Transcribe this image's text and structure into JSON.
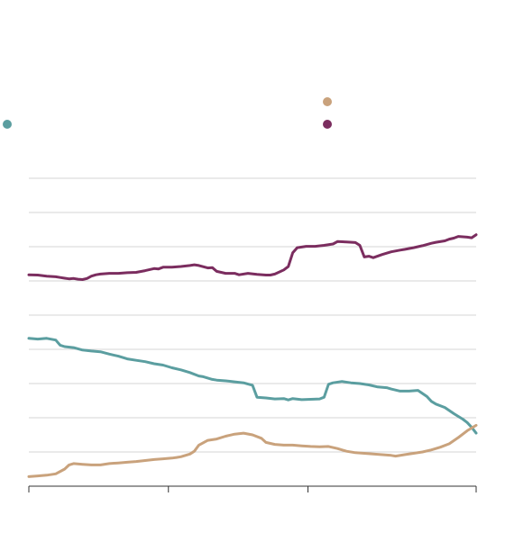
{
  "chart_data": {
    "type": "line",
    "title": "",
    "xlabel": "",
    "ylabel": "",
    "grid": true,
    "ylim": [
      0,
      9
    ],
    "xlim": [
      0,
      100
    ],
    "x_ticks": [
      0,
      31.2,
      62.4,
      100
    ],
    "legend_placement": "top",
    "series": [
      {
        "color": "#7b2d5f",
        "points": [
          [
            0,
            6.18
          ],
          [
            2,
            6.17
          ],
          [
            4,
            6.14
          ],
          [
            6,
            6.12
          ],
          [
            7,
            6.1
          ],
          [
            8,
            6.08
          ],
          [
            9,
            6.06
          ],
          [
            10,
            6.07
          ],
          [
            11,
            6.05
          ],
          [
            12,
            6.04
          ],
          [
            13,
            6.07
          ],
          [
            14,
            6.14
          ],
          [
            15,
            6.18
          ],
          [
            16,
            6.2
          ],
          [
            18,
            6.22
          ],
          [
            20,
            6.22
          ],
          [
            22,
            6.24
          ],
          [
            24,
            6.25
          ],
          [
            26,
            6.3
          ],
          [
            28,
            6.36
          ],
          [
            29,
            6.35
          ],
          [
            30,
            6.4
          ],
          [
            32,
            6.4
          ],
          [
            34,
            6.42
          ],
          [
            36,
            6.45
          ],
          [
            37,
            6.47
          ],
          [
            38,
            6.45
          ],
          [
            40,
            6.38
          ],
          [
            41,
            6.39
          ],
          [
            42,
            6.28
          ],
          [
            44,
            6.22
          ],
          [
            46,
            6.22
          ],
          [
            47,
            6.18
          ],
          [
            49,
            6.22
          ],
          [
            51,
            6.19
          ],
          [
            53,
            6.17
          ],
          [
            54,
            6.17
          ],
          [
            55,
            6.2
          ],
          [
            57,
            6.32
          ],
          [
            58,
            6.42
          ],
          [
            59,
            6.82
          ],
          [
            60,
            6.97
          ],
          [
            62,
            7.01
          ],
          [
            64,
            7.01
          ],
          [
            66,
            7.04
          ],
          [
            68,
            7.08
          ],
          [
            69,
            7.15
          ],
          [
            71,
            7.14
          ],
          [
            73,
            7.12
          ],
          [
            74,
            7.04
          ],
          [
            75,
            6.7
          ],
          [
            76,
            6.72
          ],
          [
            77,
            6.68
          ],
          [
            79,
            6.77
          ],
          [
            81,
            6.85
          ],
          [
            83,
            6.9
          ],
          [
            84,
            6.92
          ],
          [
            86,
            6.97
          ],
          [
            88,
            7.03
          ],
          [
            90,
            7.1
          ],
          [
            91,
            7.13
          ],
          [
            93,
            7.17
          ],
          [
            94,
            7.22
          ],
          [
            95,
            7.25
          ],
          [
            96,
            7.3
          ],
          [
            98,
            7.28
          ],
          [
            99,
            7.26
          ],
          [
            100,
            7.35
          ]
        ]
      },
      {
        "color": "#5b9ea0",
        "points": [
          [
            0,
            4.32
          ],
          [
            2,
            4.3
          ],
          [
            4,
            4.32
          ],
          [
            6,
            4.27
          ],
          [
            7,
            4.12
          ],
          [
            8,
            4.08
          ],
          [
            10,
            4.05
          ],
          [
            12,
            3.98
          ],
          [
            14,
            3.95
          ],
          [
            16,
            3.93
          ],
          [
            18,
            3.86
          ],
          [
            20,
            3.8
          ],
          [
            22,
            3.72
          ],
          [
            24,
            3.68
          ],
          [
            26,
            3.64
          ],
          [
            28,
            3.58
          ],
          [
            30,
            3.54
          ],
          [
            32,
            3.46
          ],
          [
            34,
            3.4
          ],
          [
            36,
            3.32
          ],
          [
            38,
            3.22
          ],
          [
            39,
            3.2
          ],
          [
            41,
            3.12
          ],
          [
            42,
            3.1
          ],
          [
            44,
            3.08
          ],
          [
            46,
            3.05
          ],
          [
            48,
            3.02
          ],
          [
            50,
            2.95
          ],
          [
            51,
            2.6
          ],
          [
            53,
            2.58
          ],
          [
            55,
            2.55
          ],
          [
            57,
            2.56
          ],
          [
            58,
            2.52
          ],
          [
            59,
            2.56
          ],
          [
            61,
            2.53
          ],
          [
            63,
            2.54
          ],
          [
            65,
            2.55
          ],
          [
            66,
            2.6
          ],
          [
            67,
            2.98
          ],
          [
            68,
            3.02
          ],
          [
            70,
            3.06
          ],
          [
            72,
            3.02
          ],
          [
            74,
            3.0
          ],
          [
            76,
            2.96
          ],
          [
            78,
            2.9
          ],
          [
            80,
            2.88
          ],
          [
            81,
            2.84
          ],
          [
            83,
            2.78
          ],
          [
            85,
            2.78
          ],
          [
            87,
            2.8
          ],
          [
            89,
            2.62
          ],
          [
            90,
            2.48
          ],
          [
            91,
            2.4
          ],
          [
            93,
            2.3
          ],
          [
            95,
            2.12
          ],
          [
            97,
            1.96
          ],
          [
            98,
            1.86
          ],
          [
            99,
            1.72
          ],
          [
            100,
            1.55
          ]
        ]
      },
      {
        "color": "#c9a27c",
        "points": [
          [
            0,
            0.28
          ],
          [
            2,
            0.3
          ],
          [
            4,
            0.32
          ],
          [
            6,
            0.36
          ],
          [
            8,
            0.5
          ],
          [
            9,
            0.62
          ],
          [
            10,
            0.66
          ],
          [
            12,
            0.64
          ],
          [
            14,
            0.62
          ],
          [
            16,
            0.62
          ],
          [
            18,
            0.66
          ],
          [
            20,
            0.68
          ],
          [
            22,
            0.7
          ],
          [
            24,
            0.72
          ],
          [
            26,
            0.75
          ],
          [
            28,
            0.78
          ],
          [
            30,
            0.8
          ],
          [
            32,
            0.82
          ],
          [
            33,
            0.84
          ],
          [
            34,
            0.86
          ],
          [
            36,
            0.94
          ],
          [
            37,
            1.02
          ],
          [
            38,
            1.2
          ],
          [
            40,
            1.34
          ],
          [
            42,
            1.38
          ],
          [
            44,
            1.46
          ],
          [
            46,
            1.52
          ],
          [
            48,
            1.55
          ],
          [
            50,
            1.5
          ],
          [
            52,
            1.4
          ],
          [
            53,
            1.28
          ],
          [
            55,
            1.22
          ],
          [
            57,
            1.2
          ],
          [
            59,
            1.2
          ],
          [
            61,
            1.18
          ],
          [
            63,
            1.16
          ],
          [
            65,
            1.15
          ],
          [
            67,
            1.16
          ],
          [
            69,
            1.1
          ],
          [
            71,
            1.02
          ],
          [
            73,
            0.98
          ],
          [
            75,
            0.96
          ],
          [
            77,
            0.94
          ],
          [
            79,
            0.92
          ],
          [
            81,
            0.9
          ],
          [
            82,
            0.88
          ],
          [
            84,
            0.92
          ],
          [
            86,
            0.96
          ],
          [
            88,
            1.0
          ],
          [
            90,
            1.06
          ],
          [
            92,
            1.14
          ],
          [
            94,
            1.24
          ],
          [
            96,
            1.42
          ],
          [
            98,
            1.62
          ],
          [
            100,
            1.78
          ]
        ]
      }
    ],
    "legend": [
      {
        "color": "#5b9ea0"
      },
      {
        "color": "#c9a27c"
      },
      {
        "color": "#7b2d5f"
      }
    ]
  }
}
